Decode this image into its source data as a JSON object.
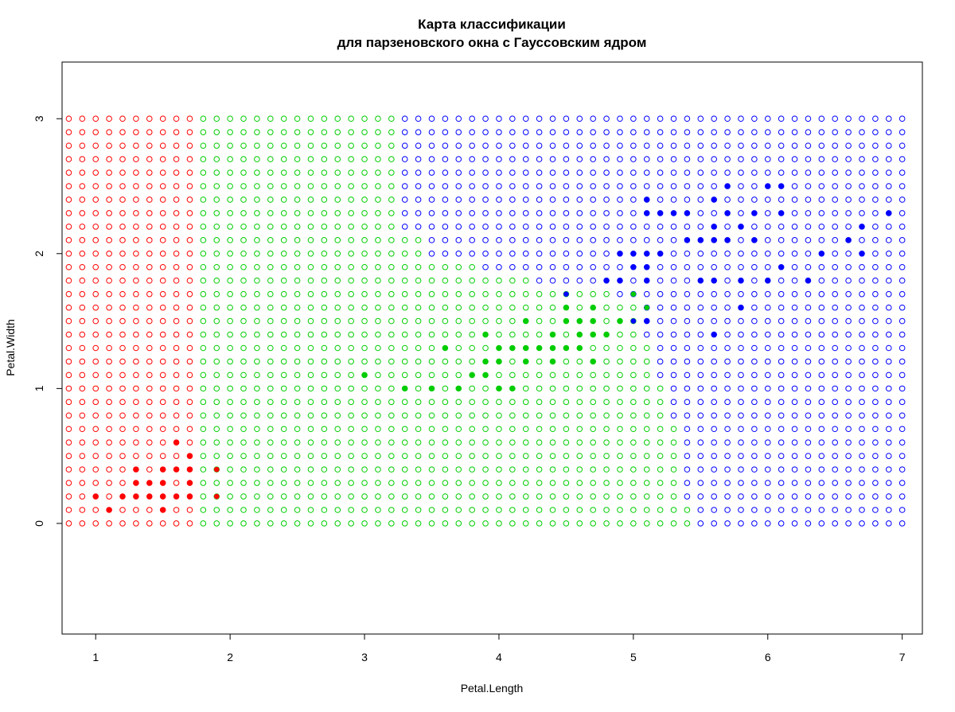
{
  "chart_data": {
    "type": "scatter",
    "title": [
      "Карта классификации",
      "для парзеновского окна с Гауссовским ядром"
    ],
    "xlabel": "Petal.Length",
    "ylabel": "Petal.Width",
    "xlim": [
      0.75,
      7.15
    ],
    "ylim": [
      -0.82,
      3.42
    ],
    "xticks": [
      1,
      2,
      3,
      4,
      5,
      6,
      7
    ],
    "yticks": [
      0,
      1,
      2,
      3
    ],
    "colors": {
      "setosa": "#ff0000",
      "versicolor": "#00cd00",
      "virginica": "#0000ff"
    },
    "classification_grid": {
      "marker": "open-circle",
      "x_start": 0.8,
      "x_end": 7.0,
      "x_step": 0.1,
      "y_start": 0.0,
      "y_end": 3.0,
      "y_step": 0.1,
      "boundary_setosa_versicolor": 1.8,
      "boundary_versicolor_virginica": [
        {
          "y_min": 0.0,
          "y_max": 0.1,
          "x": 5.5
        },
        {
          "y_min": 0.2,
          "y_max": 0.7,
          "x": 5.4
        },
        {
          "y_min": 0.8,
          "y_max": 1.0,
          "x": 5.3
        },
        {
          "y_min": 1.1,
          "y_max": 1.3,
          "x": 5.2
        },
        {
          "y_min": 1.4,
          "y_max": 1.6,
          "x": 5.1
        },
        {
          "y_min": 1.7,
          "y_max": 1.7,
          "x": 4.9
        },
        {
          "y_min": 1.8,
          "y_max": 1.8,
          "x": 4.3
        },
        {
          "y_min": 1.9,
          "y_max": 1.9,
          "x": 3.9
        },
        {
          "y_min": 2.0,
          "y_max": 2.1,
          "x": 3.5
        },
        {
          "y_min": 2.2,
          "y_max": 3.0,
          "x": 3.3
        }
      ]
    },
    "series": [
      {
        "class": "setosa",
        "marker": "filled-circle",
        "points": [
          [
            1.0,
            0.2
          ],
          [
            1.1,
            0.1
          ],
          [
            1.2,
            0.2
          ],
          [
            1.3,
            0.2
          ],
          [
            1.3,
            0.3
          ],
          [
            1.3,
            0.4
          ],
          [
            1.4,
            0.2
          ],
          [
            1.4,
            0.3
          ],
          [
            1.5,
            0.1
          ],
          [
            1.5,
            0.2
          ],
          [
            1.5,
            0.3
          ],
          [
            1.5,
            0.4
          ],
          [
            1.6,
            0.2
          ],
          [
            1.6,
            0.4
          ],
          [
            1.6,
            0.6
          ],
          [
            1.7,
            0.2
          ],
          [
            1.7,
            0.3
          ],
          [
            1.7,
            0.4
          ],
          [
            1.7,
            0.5
          ],
          [
            1.9,
            0.2
          ],
          [
            1.9,
            0.4
          ]
        ]
      },
      {
        "class": "versicolor",
        "marker": "filled-circle",
        "points": [
          [
            3.0,
            1.1
          ],
          [
            3.3,
            1.0
          ],
          [
            3.5,
            1.0
          ],
          [
            3.6,
            1.3
          ],
          [
            3.7,
            1.0
          ],
          [
            3.8,
            1.1
          ],
          [
            3.9,
            1.1
          ],
          [
            3.9,
            1.2
          ],
          [
            3.9,
            1.4
          ],
          [
            4.0,
            1.0
          ],
          [
            4.0,
            1.2
          ],
          [
            4.0,
            1.3
          ],
          [
            4.1,
            1.0
          ],
          [
            4.1,
            1.3
          ],
          [
            4.2,
            1.2
          ],
          [
            4.2,
            1.3
          ],
          [
            4.2,
            1.5
          ],
          [
            4.3,
            1.3
          ],
          [
            4.4,
            1.2
          ],
          [
            4.4,
            1.3
          ],
          [
            4.4,
            1.4
          ],
          [
            4.5,
            1.3
          ],
          [
            4.5,
            1.5
          ],
          [
            4.5,
            1.6
          ],
          [
            4.6,
            1.3
          ],
          [
            4.6,
            1.4
          ],
          [
            4.6,
            1.5
          ],
          [
            4.7,
            1.2
          ],
          [
            4.7,
            1.4
          ],
          [
            4.7,
            1.5
          ],
          [
            4.7,
            1.6
          ],
          [
            4.8,
            1.4
          ],
          [
            4.9,
            1.5
          ],
          [
            5.0,
            1.7
          ],
          [
            5.1,
            1.6
          ]
        ]
      },
      {
        "class": "virginica",
        "marker": "filled-circle",
        "points": [
          [
            4.5,
            1.7
          ],
          [
            4.8,
            1.8
          ],
          [
            4.9,
            1.8
          ],
          [
            4.9,
            2.0
          ],
          [
            5.0,
            1.5
          ],
          [
            5.0,
            1.9
          ],
          [
            5.0,
            2.0
          ],
          [
            5.1,
            1.5
          ],
          [
            5.1,
            1.8
          ],
          [
            5.1,
            1.9
          ],
          [
            5.1,
            2.0
          ],
          [
            5.1,
            2.3
          ],
          [
            5.1,
            2.4
          ],
          [
            5.2,
            2.0
          ],
          [
            5.2,
            2.3
          ],
          [
            5.3,
            2.3
          ],
          [
            5.4,
            2.1
          ],
          [
            5.4,
            2.3
          ],
          [
            5.5,
            1.8
          ],
          [
            5.5,
            2.1
          ],
          [
            5.6,
            1.4
          ],
          [
            5.6,
            1.8
          ],
          [
            5.6,
            2.1
          ],
          [
            5.6,
            2.2
          ],
          [
            5.6,
            2.4
          ],
          [
            5.7,
            2.1
          ],
          [
            5.7,
            2.3
          ],
          [
            5.7,
            2.5
          ],
          [
            5.8,
            1.6
          ],
          [
            5.8,
            1.8
          ],
          [
            5.8,
            2.2
          ],
          [
            5.9,
            2.1
          ],
          [
            5.9,
            2.3
          ],
          [
            6.0,
            1.8
          ],
          [
            6.0,
            2.5
          ],
          [
            6.1,
            1.9
          ],
          [
            6.1,
            2.3
          ],
          [
            6.1,
            2.5
          ],
          [
            6.3,
            1.8
          ],
          [
            6.4,
            2.0
          ],
          [
            6.6,
            2.1
          ],
          [
            6.7,
            2.0
          ],
          [
            6.7,
            2.2
          ],
          [
            6.9,
            2.3
          ]
        ]
      }
    ]
  }
}
